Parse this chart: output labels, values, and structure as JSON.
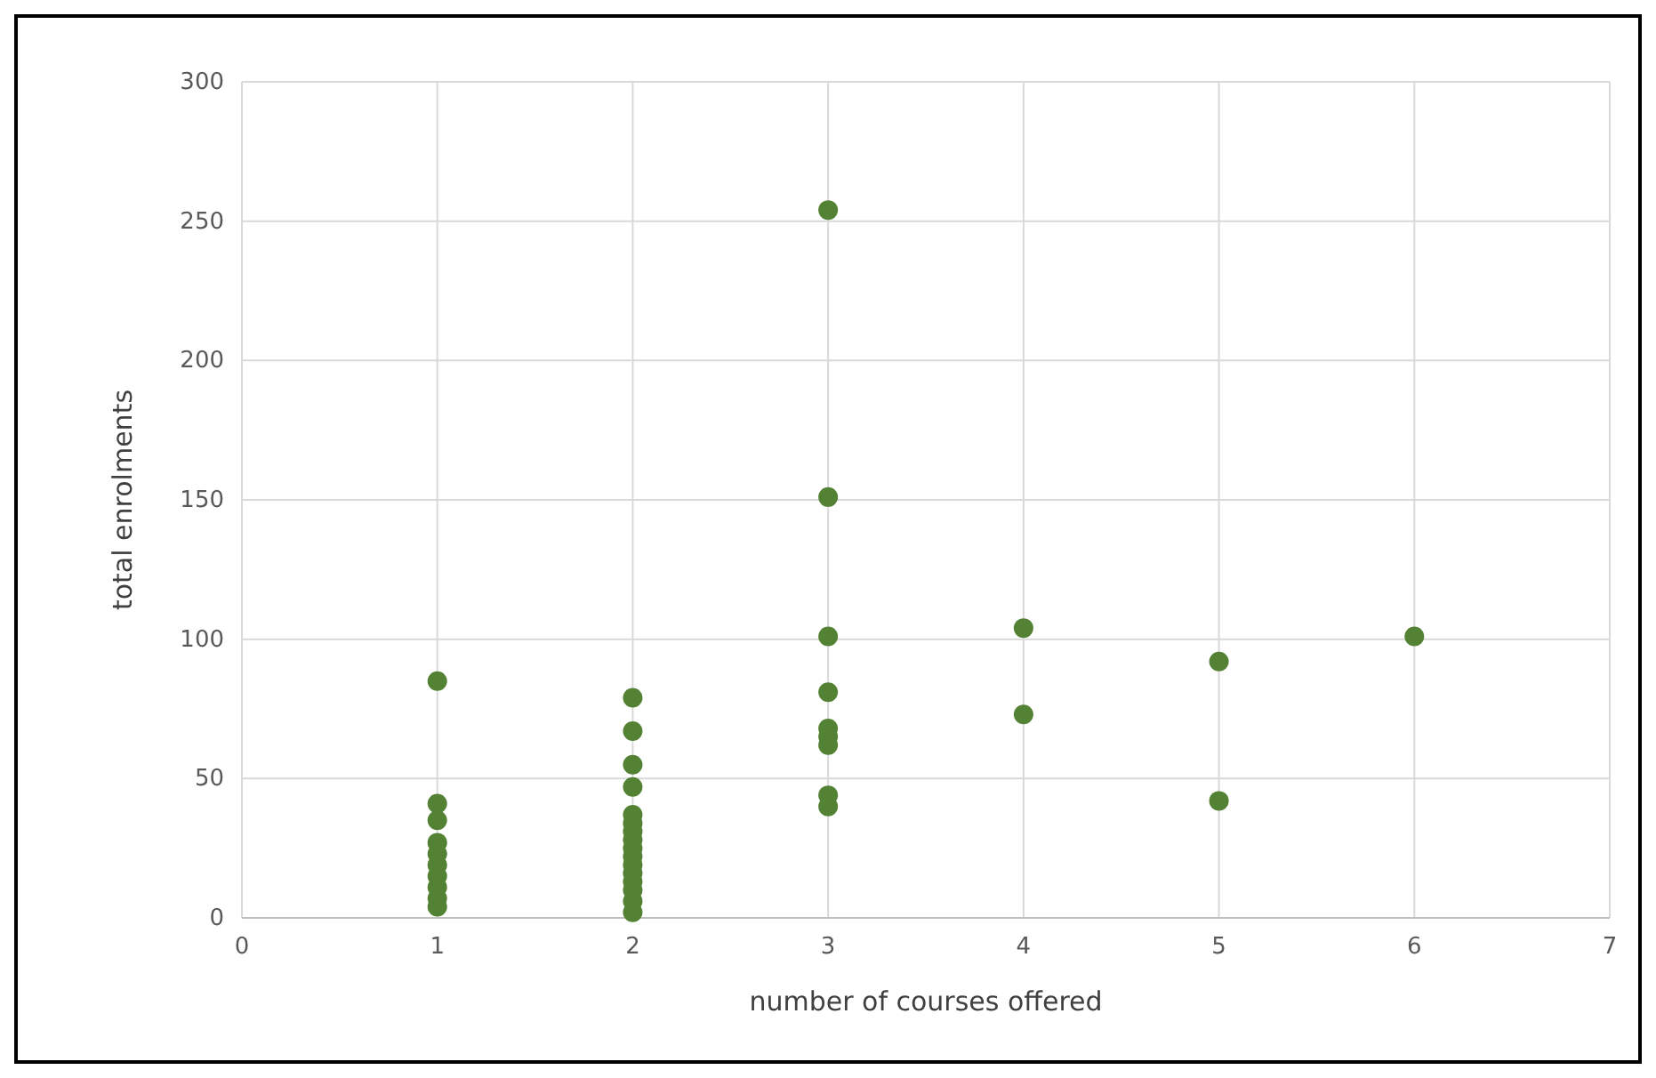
{
  "chart_data": {
    "type": "scatter",
    "xlabel": "number of courses offered",
    "ylabel": "total enrolments",
    "xlim": [
      0,
      7
    ],
    "xticks": [
      0,
      1,
      2,
      3,
      4,
      5,
      6,
      7
    ],
    "ylim": [
      0,
      300
    ],
    "yticks": [
      0,
      50,
      100,
      150,
      200,
      250,
      300
    ],
    "grid": true,
    "marker": "circle",
    "series": [
      {
        "color": "#548235",
        "x": [
          1,
          1,
          1,
          1,
          1,
          1,
          1,
          1,
          1,
          1,
          2,
          2,
          2,
          2,
          2,
          2,
          2,
          2,
          2,
          2,
          2,
          2,
          2,
          2,
          2,
          2,
          3,
          3,
          3,
          3,
          3,
          3,
          3,
          3,
          3,
          4,
          4,
          5,
          5,
          6
        ],
        "values": [
          85,
          41,
          35,
          27,
          23,
          19,
          15,
          11,
          7,
          4,
          79,
          67,
          55,
          47,
          37,
          34,
          31,
          28,
          25,
          22,
          19,
          16,
          13,
          10,
          6,
          2,
          254,
          151,
          101,
          81,
          68,
          65,
          62,
          44,
          40,
          104,
          73,
          92,
          42,
          101
        ]
      }
    ]
  }
}
